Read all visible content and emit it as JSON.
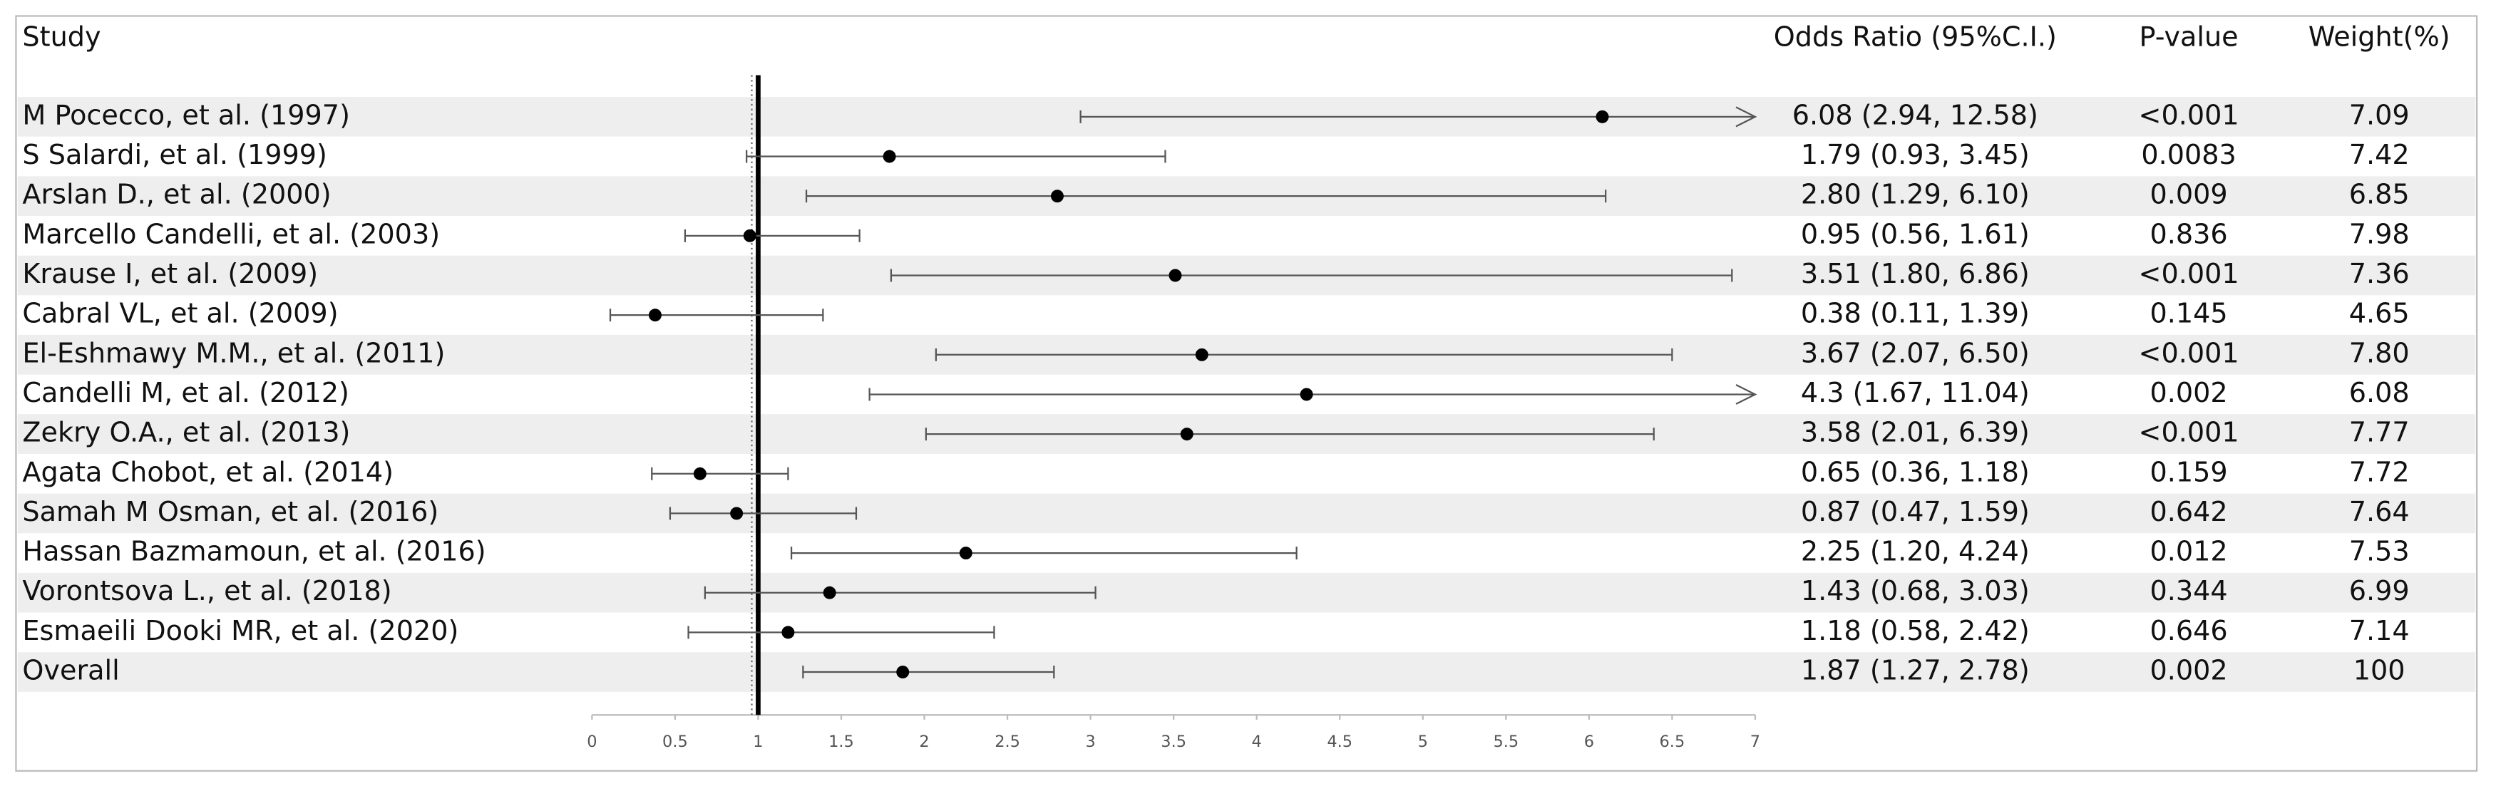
{
  "chart_data": {
    "type": "forest",
    "columns": {
      "study": "Study",
      "estimate": "Odds Ratio (95%C.I.)",
      "p": "P-value",
      "weight": "Weight(%)"
    },
    "categories": [
      "M Pocecco, et al. (1997)",
      "S Salardi, et al. (1999)",
      "Arslan D., et al. (2000)",
      "Marcello Candelli, et al. (2003)",
      "Krause I, et al. (2009)",
      "Cabral VL, et al. (2009)",
      "El-Eshmawy M.M., et al. (2011)",
      "Candelli M, et al. (2012)",
      "Zekry O.A., et al. (2013)",
      "Agata Chobot, et al. (2014)",
      "Samah M Osman, et al. (2016)",
      "Hassan Bazmamoun, et al. (2016)",
      "Vorontsova L., et al. (2018)",
      "Esmaeili Dooki MR, et al. (2020)",
      "Overall"
    ],
    "values": [
      6.08,
      1.79,
      2.8,
      0.95,
      3.51,
      0.38,
      3.67,
      4.3,
      3.58,
      0.65,
      0.87,
      2.25,
      1.43,
      1.18,
      1.87
    ],
    "lower": [
      2.94,
      0.93,
      1.29,
      0.56,
      1.8,
      0.11,
      2.07,
      1.67,
      2.01,
      0.36,
      0.47,
      1.2,
      0.68,
      0.58,
      1.27
    ],
    "upper": [
      12.58,
      3.45,
      6.1,
      1.61,
      6.86,
      1.39,
      6.5,
      11.04,
      6.39,
      1.18,
      1.59,
      4.24,
      3.03,
      2.42,
      2.78
    ],
    "value_labels": [
      "6.08 (2.94, 12.58)",
      "1.79 (0.93, 3.45)",
      "2.80 (1.29, 6.10)",
      "0.95 (0.56, 1.61)",
      "3.51 (1.80, 6.86)",
      "0.38 (0.11, 1.39)",
      "3.67 (2.07, 6.50)",
      "4.3 (1.67, 11.04)",
      "3.58 (2.01, 6.39)",
      "0.65 (0.36, 1.18)",
      "0.87 (0.47, 1.59)",
      "2.25 (1.20, 4.24)",
      "1.43 (0.68, 3.03)",
      "1.18 (0.58, 2.42)",
      "1.87 (1.27, 2.78)"
    ],
    "p_values": [
      "<0.001",
      "0.0083",
      "0.009",
      "0.836",
      "<0.001",
      "0.145",
      "<0.001",
      "0.002",
      "<0.001",
      "0.159",
      "0.642",
      "0.012",
      "0.344",
      "0.646",
      "0.002"
    ],
    "weights": [
      "7.09",
      "7.42",
      "6.85",
      "7.98",
      "7.36",
      "4.65",
      "7.80",
      "6.08",
      "7.77",
      "7.72",
      "7.64",
      "7.53",
      "6.99",
      "7.14",
      "100"
    ],
    "xlim": [
      0,
      7
    ],
    "xticks": [
      0,
      0.5,
      1,
      1.5,
      2,
      2.5,
      3,
      3.5,
      4,
      4.5,
      5,
      5.5,
      6,
      6.5,
      7
    ],
    "reference": 1,
    "color": "#000000",
    "ci_color": "#555555",
    "stripe_color": "#eeeeee"
  }
}
